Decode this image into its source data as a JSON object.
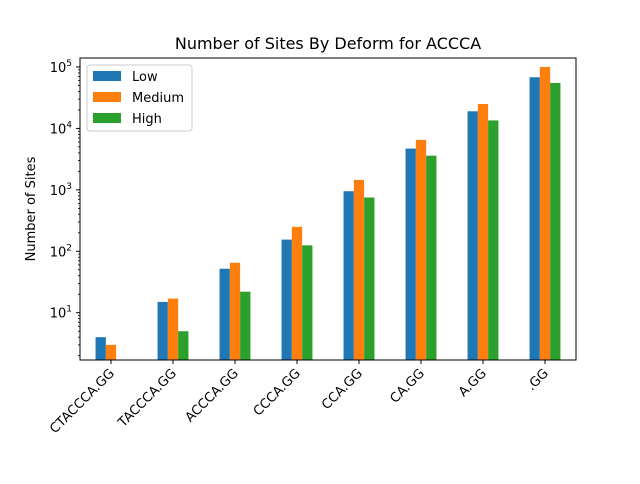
{
  "chart_data": {
    "type": "bar",
    "title": "Number of Sites By Deform for ACCCA",
    "xlabel": "",
    "ylabel": "Number of Sites",
    "yscale": "log",
    "ylim": [
      1.7,
      140000
    ],
    "grid": false,
    "legend_position": "top-left",
    "categories": [
      "CTACCCA.GG",
      "TACCCA.GG",
      "ACCCA.GG",
      "CCCA.GG",
      "CCA.GG",
      "CA.GG",
      "A.GG",
      ".GG"
    ],
    "y_ticks": [
      {
        "value": 10,
        "base": "10",
        "exp": "1"
      },
      {
        "value": 100,
        "base": "10",
        "exp": "2"
      },
      {
        "value": 1000,
        "base": "10",
        "exp": "3"
      },
      {
        "value": 10000,
        "base": "10",
        "exp": "4"
      },
      {
        "value": 100000,
        "base": "10",
        "exp": "5"
      }
    ],
    "series": [
      {
        "name": "Low",
        "color": "#1f77b4",
        "values": [
          4,
          15,
          52,
          155,
          950,
          4700,
          19000,
          68000
        ]
      },
      {
        "name": "Medium",
        "color": "#ff7f0e",
        "values": [
          3,
          17,
          65,
          250,
          1450,
          6500,
          25000,
          100000
        ]
      },
      {
        "name": "High",
        "color": "#2ca02c",
        "values": [
          null,
          5,
          22,
          125,
          750,
          3600,
          13500,
          55000
        ]
      }
    ]
  }
}
